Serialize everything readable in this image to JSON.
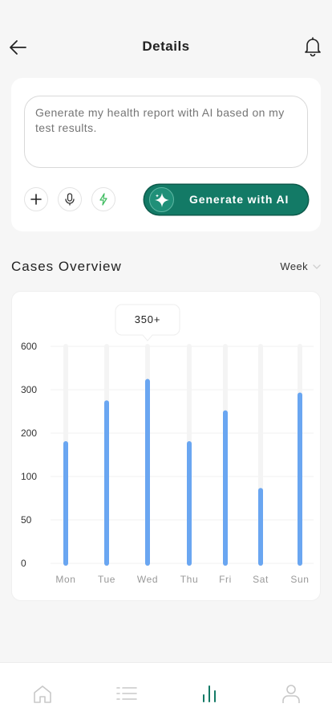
{
  "header": {
    "title": "Details"
  },
  "prompt": {
    "placeholder": "Generate my health report with AI based on my test results.",
    "generate_label": "Generate with AI"
  },
  "overview": {
    "title": "Cases Overview",
    "range": "Week"
  },
  "chart_data": {
    "type": "bar",
    "categories": [
      "Mon",
      "Tue",
      "Wed",
      "Thu",
      "Fri",
      "Sat",
      "Sun"
    ],
    "y_ticks": [
      "0",
      "50",
      "100",
      "200",
      "300",
      "600"
    ],
    "values": [
      176,
      270,
      358,
      176,
      247,
      84,
      288
    ],
    "tooltip": {
      "category": "Wed",
      "label": "350+"
    },
    "bar_color": "#6aa6f1",
    "track_color": "#f4f4f4",
    "grid": true
  },
  "colors": {
    "accent": "#137a66",
    "nav_active": "#137a66",
    "nav_inactive": "#c8c8c8"
  },
  "nav": {
    "items": [
      {
        "icon": "home-icon",
        "active": false
      },
      {
        "icon": "list-icon",
        "active": false
      },
      {
        "icon": "chart-icon",
        "active": true
      },
      {
        "icon": "profile-icon",
        "active": false
      }
    ]
  }
}
